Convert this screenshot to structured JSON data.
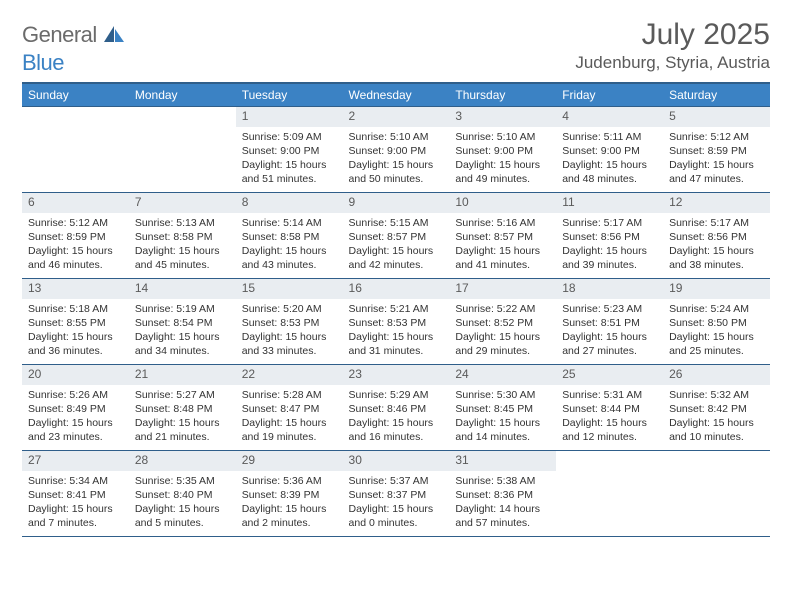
{
  "brand": {
    "name_part1": "General",
    "name_part2": "Blue"
  },
  "title": "July 2025",
  "location": "Judenburg, Styria, Austria",
  "colors": {
    "header_bg": "#3b82c4",
    "header_border": "#2f5e8a",
    "daynum_bg": "#e9edf1",
    "text_main": "#333333",
    "text_muted": "#5a5a5a",
    "page_bg": "#ffffff"
  },
  "typography": {
    "base_family": "Arial, Helvetica, sans-serif",
    "title_size_pt": 22,
    "location_size_pt": 13,
    "weekday_size_pt": 9,
    "body_size_pt": 8
  },
  "weekdays": [
    "Sunday",
    "Monday",
    "Tuesday",
    "Wednesday",
    "Thursday",
    "Friday",
    "Saturday"
  ],
  "grid": [
    [
      {
        "blank": true
      },
      {
        "blank": true
      },
      {
        "day": "1",
        "sunrise": "Sunrise: 5:09 AM",
        "sunset": "Sunset: 9:00 PM",
        "daylight": "Daylight: 15 hours and 51 minutes."
      },
      {
        "day": "2",
        "sunrise": "Sunrise: 5:10 AM",
        "sunset": "Sunset: 9:00 PM",
        "daylight": "Daylight: 15 hours and 50 minutes."
      },
      {
        "day": "3",
        "sunrise": "Sunrise: 5:10 AM",
        "sunset": "Sunset: 9:00 PM",
        "daylight": "Daylight: 15 hours and 49 minutes."
      },
      {
        "day": "4",
        "sunrise": "Sunrise: 5:11 AM",
        "sunset": "Sunset: 9:00 PM",
        "daylight": "Daylight: 15 hours and 48 minutes."
      },
      {
        "day": "5",
        "sunrise": "Sunrise: 5:12 AM",
        "sunset": "Sunset: 8:59 PM",
        "daylight": "Daylight: 15 hours and 47 minutes."
      }
    ],
    [
      {
        "day": "6",
        "sunrise": "Sunrise: 5:12 AM",
        "sunset": "Sunset: 8:59 PM",
        "daylight": "Daylight: 15 hours and 46 minutes."
      },
      {
        "day": "7",
        "sunrise": "Sunrise: 5:13 AM",
        "sunset": "Sunset: 8:58 PM",
        "daylight": "Daylight: 15 hours and 45 minutes."
      },
      {
        "day": "8",
        "sunrise": "Sunrise: 5:14 AM",
        "sunset": "Sunset: 8:58 PM",
        "daylight": "Daylight: 15 hours and 43 minutes."
      },
      {
        "day": "9",
        "sunrise": "Sunrise: 5:15 AM",
        "sunset": "Sunset: 8:57 PM",
        "daylight": "Daylight: 15 hours and 42 minutes."
      },
      {
        "day": "10",
        "sunrise": "Sunrise: 5:16 AM",
        "sunset": "Sunset: 8:57 PM",
        "daylight": "Daylight: 15 hours and 41 minutes."
      },
      {
        "day": "11",
        "sunrise": "Sunrise: 5:17 AM",
        "sunset": "Sunset: 8:56 PM",
        "daylight": "Daylight: 15 hours and 39 minutes."
      },
      {
        "day": "12",
        "sunrise": "Sunrise: 5:17 AM",
        "sunset": "Sunset: 8:56 PM",
        "daylight": "Daylight: 15 hours and 38 minutes."
      }
    ],
    [
      {
        "day": "13",
        "sunrise": "Sunrise: 5:18 AM",
        "sunset": "Sunset: 8:55 PM",
        "daylight": "Daylight: 15 hours and 36 minutes."
      },
      {
        "day": "14",
        "sunrise": "Sunrise: 5:19 AM",
        "sunset": "Sunset: 8:54 PM",
        "daylight": "Daylight: 15 hours and 34 minutes."
      },
      {
        "day": "15",
        "sunrise": "Sunrise: 5:20 AM",
        "sunset": "Sunset: 8:53 PM",
        "daylight": "Daylight: 15 hours and 33 minutes."
      },
      {
        "day": "16",
        "sunrise": "Sunrise: 5:21 AM",
        "sunset": "Sunset: 8:53 PM",
        "daylight": "Daylight: 15 hours and 31 minutes."
      },
      {
        "day": "17",
        "sunrise": "Sunrise: 5:22 AM",
        "sunset": "Sunset: 8:52 PM",
        "daylight": "Daylight: 15 hours and 29 minutes."
      },
      {
        "day": "18",
        "sunrise": "Sunrise: 5:23 AM",
        "sunset": "Sunset: 8:51 PM",
        "daylight": "Daylight: 15 hours and 27 minutes."
      },
      {
        "day": "19",
        "sunrise": "Sunrise: 5:24 AM",
        "sunset": "Sunset: 8:50 PM",
        "daylight": "Daylight: 15 hours and 25 minutes."
      }
    ],
    [
      {
        "day": "20",
        "sunrise": "Sunrise: 5:26 AM",
        "sunset": "Sunset: 8:49 PM",
        "daylight": "Daylight: 15 hours and 23 minutes."
      },
      {
        "day": "21",
        "sunrise": "Sunrise: 5:27 AM",
        "sunset": "Sunset: 8:48 PM",
        "daylight": "Daylight: 15 hours and 21 minutes."
      },
      {
        "day": "22",
        "sunrise": "Sunrise: 5:28 AM",
        "sunset": "Sunset: 8:47 PM",
        "daylight": "Daylight: 15 hours and 19 minutes."
      },
      {
        "day": "23",
        "sunrise": "Sunrise: 5:29 AM",
        "sunset": "Sunset: 8:46 PM",
        "daylight": "Daylight: 15 hours and 16 minutes."
      },
      {
        "day": "24",
        "sunrise": "Sunrise: 5:30 AM",
        "sunset": "Sunset: 8:45 PM",
        "daylight": "Daylight: 15 hours and 14 minutes."
      },
      {
        "day": "25",
        "sunrise": "Sunrise: 5:31 AM",
        "sunset": "Sunset: 8:44 PM",
        "daylight": "Daylight: 15 hours and 12 minutes."
      },
      {
        "day": "26",
        "sunrise": "Sunrise: 5:32 AM",
        "sunset": "Sunset: 8:42 PM",
        "daylight": "Daylight: 15 hours and 10 minutes."
      }
    ],
    [
      {
        "day": "27",
        "sunrise": "Sunrise: 5:34 AM",
        "sunset": "Sunset: 8:41 PM",
        "daylight": "Daylight: 15 hours and 7 minutes."
      },
      {
        "day": "28",
        "sunrise": "Sunrise: 5:35 AM",
        "sunset": "Sunset: 8:40 PM",
        "daylight": "Daylight: 15 hours and 5 minutes."
      },
      {
        "day": "29",
        "sunrise": "Sunrise: 5:36 AM",
        "sunset": "Sunset: 8:39 PM",
        "daylight": "Daylight: 15 hours and 2 minutes."
      },
      {
        "day": "30",
        "sunrise": "Sunrise: 5:37 AM",
        "sunset": "Sunset: 8:37 PM",
        "daylight": "Daylight: 15 hours and 0 minutes."
      },
      {
        "day": "31",
        "sunrise": "Sunrise: 5:38 AM",
        "sunset": "Sunset: 8:36 PM",
        "daylight": "Daylight: 14 hours and 57 minutes."
      },
      {
        "blank": true
      },
      {
        "blank": true
      }
    ]
  ]
}
